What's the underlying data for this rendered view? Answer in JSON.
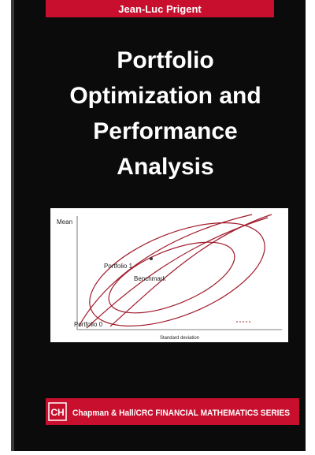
{
  "header": {
    "author": "Jean-Luc Prigent"
  },
  "title_lines": [
    "Portfolio",
    "Optimization and",
    "Performance",
    "Analysis"
  ],
  "figure": {
    "y_label": "Mean",
    "x_label": "Standard deviation",
    "annotations": [
      "Portfolio 1",
      "Benchmark",
      "Portfolio 0"
    ]
  },
  "footer": {
    "logo": "CH",
    "series": "Chapman & Hall/CRC FINANCIAL MATHEMATICS SERIES"
  }
}
